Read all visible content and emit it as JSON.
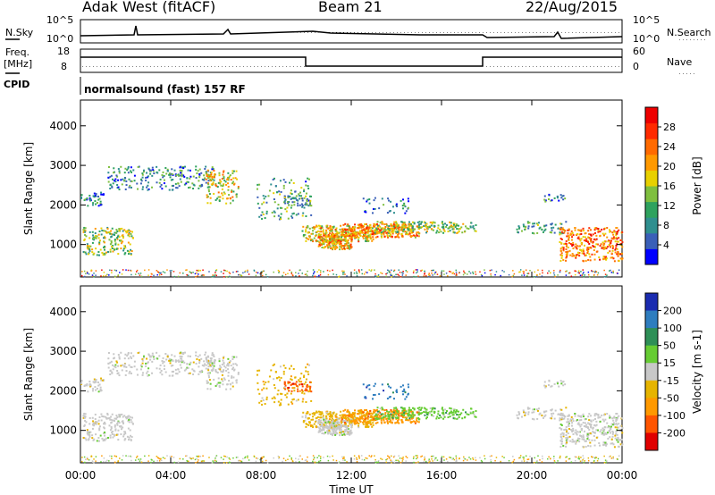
{
  "header": {
    "station": "Adak West (fitACF)",
    "beam": "Beam 21",
    "date": "22/Aug/2015"
  },
  "noise_panel": {
    "left_label": "N.Sky",
    "right_label": "N.Search",
    "y_ticks": [
      "10^5",
      "10^0"
    ]
  },
  "freq_panel": {
    "left_label_line1": "Freq.",
    "left_label_line2": "[MHz]",
    "right_label": "Nave",
    "left_ticks": [
      "18",
      "8"
    ],
    "right_ticks": [
      "60",
      "0"
    ]
  },
  "cpid": {
    "label": "CPID",
    "program": "normalsound (fast) 157 RF"
  },
  "chart_data": [
    {
      "type": "heatmap",
      "title": "Power",
      "ylabel": "Slant Range [km]",
      "ylim": [
        180,
        4650
      ],
      "y_ticks": [
        "1000",
        "2000",
        "3000",
        "4000"
      ],
      "x_ticks": [
        "00:00",
        "04:00",
        "08:00",
        "12:00",
        "16:00",
        "20:00",
        "00:00"
      ],
      "colorbar": {
        "label": "Power [dB]",
        "ticks": [
          "4",
          "8",
          "12",
          "16",
          "20",
          "24",
          "28"
        ],
        "colors": [
          "#0000ff",
          "#3a5fb8",
          "#2f8f8f",
          "#2ea25e",
          "#7fbf3f",
          "#e8d000",
          "#ff9900",
          "#ff6a00",
          "#ff2a00",
          "#ee0000"
        ]
      }
    },
    {
      "type": "heatmap",
      "title": "Velocity",
      "ylabel": "Slant Range [km]",
      "xlabel": "Time UT",
      "ylim": [
        180,
        4650
      ],
      "y_ticks": [
        "1000",
        "2000",
        "3000",
        "4000"
      ],
      "x_ticks": [
        "00:00",
        "04:00",
        "08:00",
        "12:00",
        "16:00",
        "20:00",
        "00:00"
      ],
      "colorbar": {
        "label": "Velocity [m s-1]",
        "ticks": [
          "200",
          "100",
          "50",
          "15",
          "-15",
          "-50",
          "-100",
          "-200"
        ],
        "colors": [
          "#1a2bb0",
          "#2e7dbf",
          "#2e8f57",
          "#66cc33",
          "#c8c8c8",
          "#e6b400",
          "#ff9900",
          "#ff5500",
          "#e00000"
        ]
      }
    }
  ]
}
